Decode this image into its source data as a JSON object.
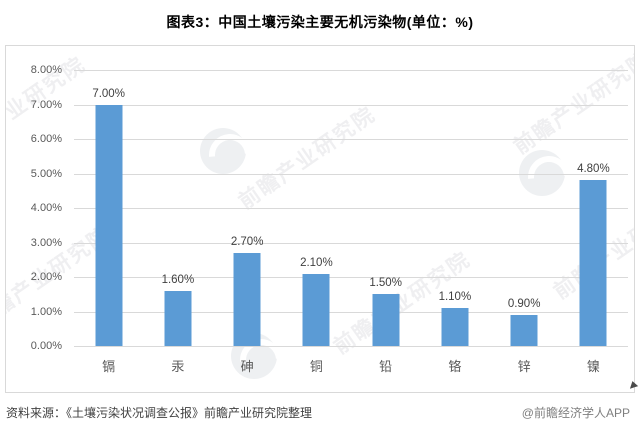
{
  "title": "图表3：中国土壤污染主要无机污染物(单位：%)",
  "chart_data": {
    "type": "bar",
    "title": "图表3：中国土壤污染主要无机污染物(单位：%)",
    "categories": [
      "镉",
      "汞",
      "砷",
      "铜",
      "铅",
      "铬",
      "锌",
      "镍"
    ],
    "values": [
      7.0,
      1.6,
      2.7,
      2.1,
      1.5,
      1.1,
      0.9,
      4.8
    ],
    "value_labels": [
      "7.00%",
      "1.60%",
      "2.70%",
      "2.10%",
      "1.50%",
      "1.10%",
      "0.90%",
      "4.80%"
    ],
    "xlabel": "",
    "ylabel": "",
    "ylim": [
      0,
      8
    ],
    "ytick_labels_top_to_bottom": [
      "8.00%",
      "7.00%",
      "6.00%",
      "5.00%",
      "4.00%",
      "3.00%",
      "2.00%",
      "1.00%",
      "0.00%"
    ],
    "grid": true,
    "legend": "none",
    "bar_color": "#5B9BD5",
    "gridline_color": "#D9D9D9"
  },
  "footer": {
    "source": "资料来源：《土壤污染状况调查公报》前瞻产业研究院整理",
    "credit": "@前瞻经济学人APP"
  },
  "watermark": {
    "text": "前瞻产业研究院"
  }
}
